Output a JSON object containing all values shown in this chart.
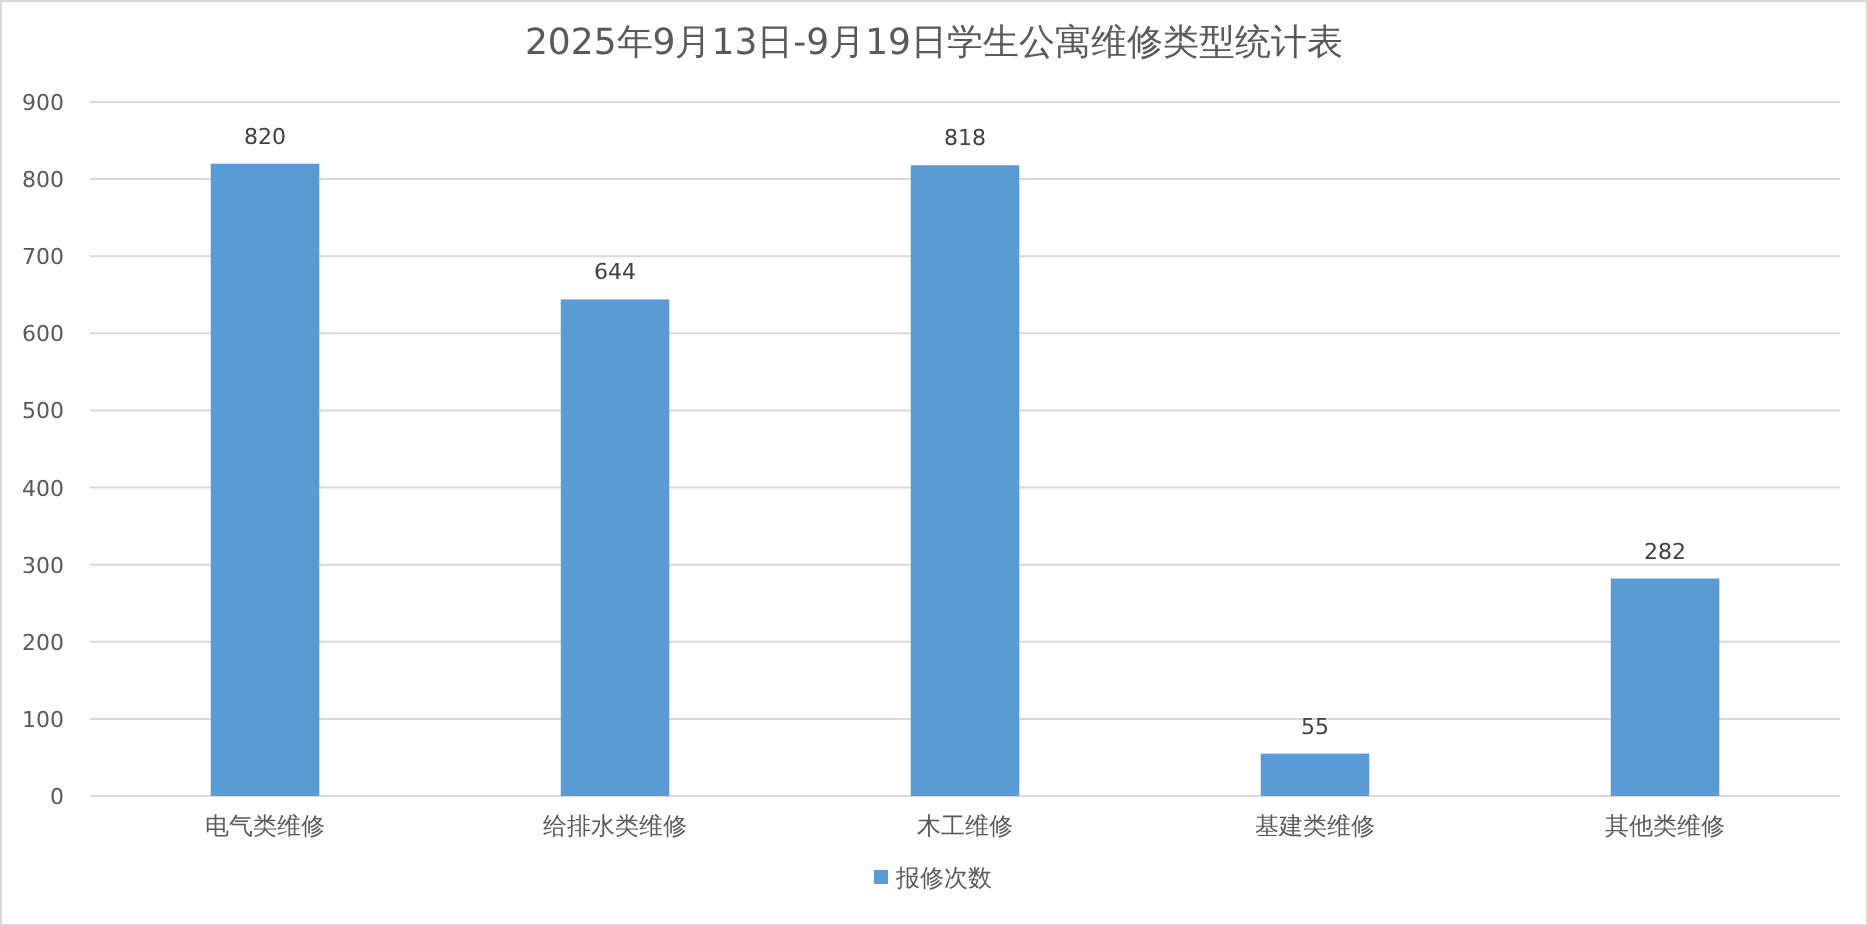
{
  "chart_data": {
    "type": "bar",
    "title": "2025年9月13日-9月19日学生公寓维修类型统计表",
    "categories": [
      "电气类维修",
      "给排水类维修",
      "木工维修",
      "基建类维修",
      "其他类维修"
    ],
    "series": [
      {
        "name": "报修次数",
        "color": "#5b9bd5",
        "values": [
          820,
          644,
          818,
          55,
          282
        ]
      }
    ],
    "ylim": [
      0,
      900
    ],
    "yticks": [
      0,
      100,
      200,
      300,
      400,
      500,
      600,
      700,
      800,
      900
    ],
    "grid": "y",
    "legend": "bottom",
    "data_labels": true
  }
}
